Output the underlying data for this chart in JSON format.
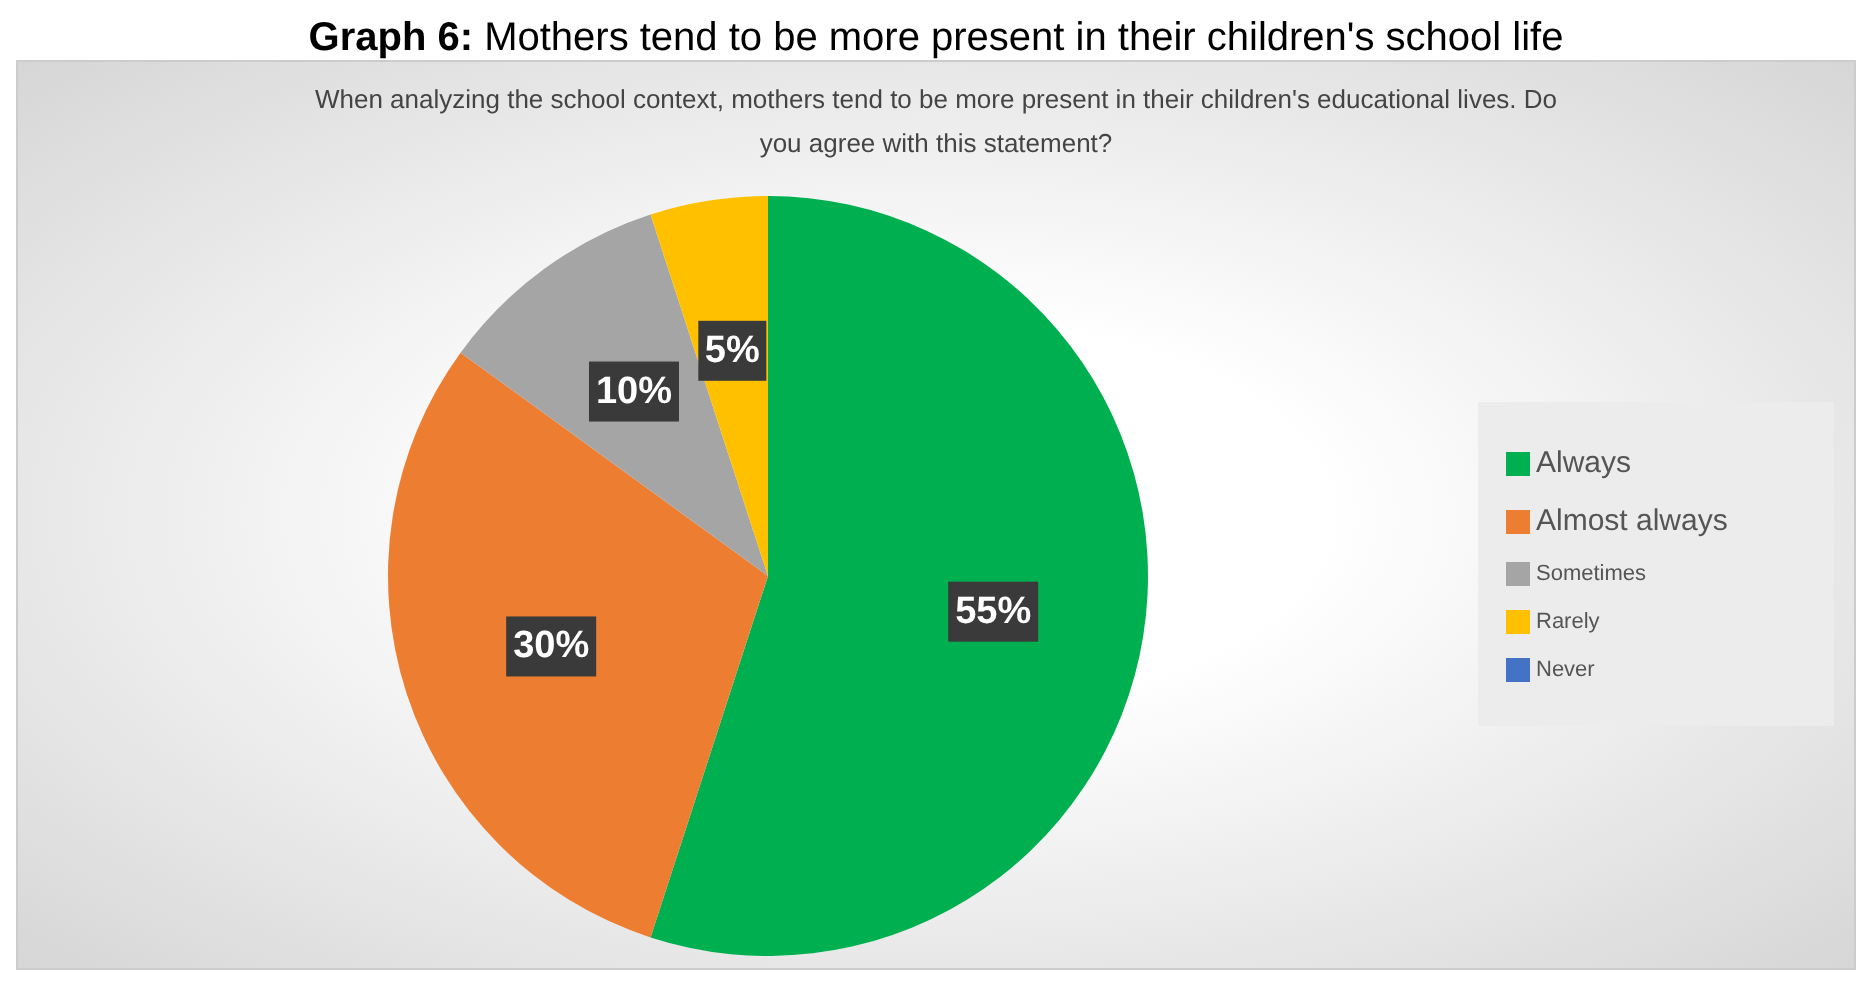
{
  "chart_data": {
    "type": "pie",
    "title": "Graph 6: Mothers tend to be more present in their children's school life",
    "subtitle": "When analyzing the school context, mothers tend to be more present in their children's educational lives. Do you agree with this statement?",
    "categories": [
      "Always",
      "Almost always",
      "Sometimes",
      "Rarely",
      "Never"
    ],
    "values": [
      55,
      30,
      10,
      5,
      0
    ],
    "colors": [
      "#00b050",
      "#ed7d31",
      "#a5a5a5",
      "#ffc000",
      "#4472c4"
    ],
    "value_labels": [
      "55%",
      "30%",
      "10%",
      "5%",
      null
    ],
    "legend": "right"
  }
}
